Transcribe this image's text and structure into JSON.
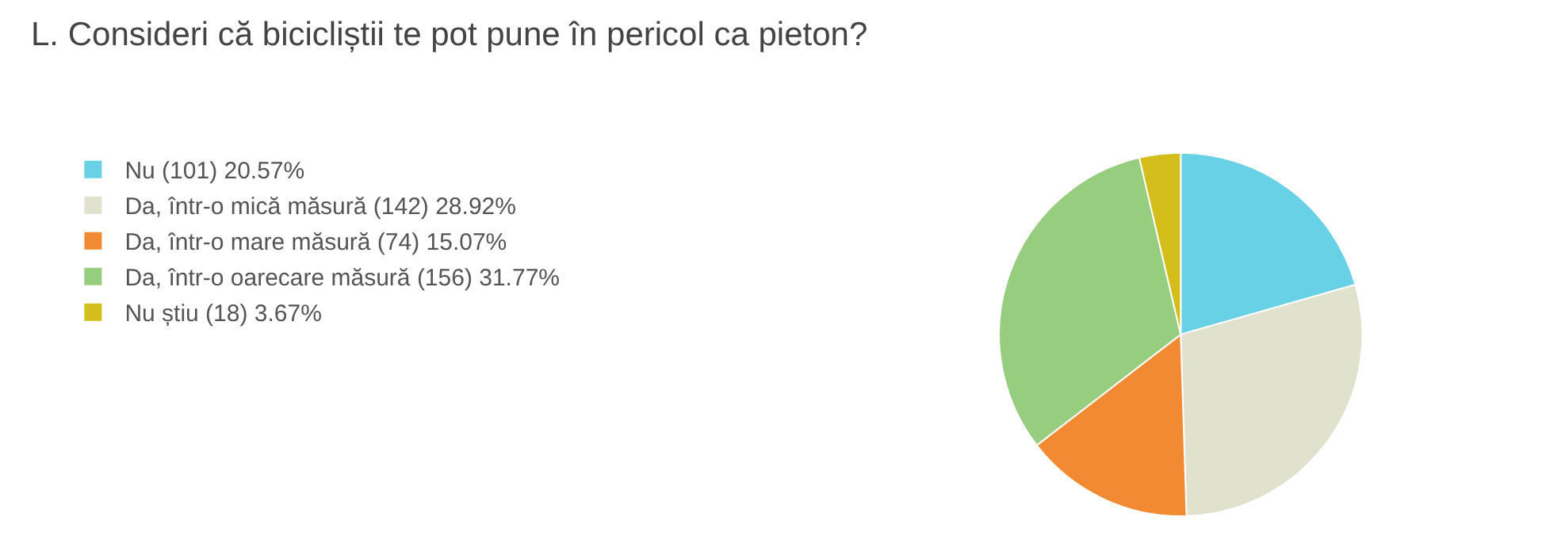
{
  "chart_data": {
    "type": "pie",
    "title": "L. Consideri că bicicliștii te pot pune în pericol ca pieton?",
    "categories": [
      "Nu (101) 20.57%",
      "Da, într-o mică măsură (142) 28.92%",
      "Da, într-o mare măsură (74) 15.07%",
      "Da, într-o oarecare măsură (156) 31.77%",
      "Nu știu (18) 3.67%"
    ],
    "values": [
      101,
      142,
      74,
      156,
      18
    ],
    "colors": [
      "#68d1e6",
      "#e0e2ce",
      "#f28a33",
      "#96cd7f",
      "#d4be1c"
    ],
    "legend": "top left"
  }
}
